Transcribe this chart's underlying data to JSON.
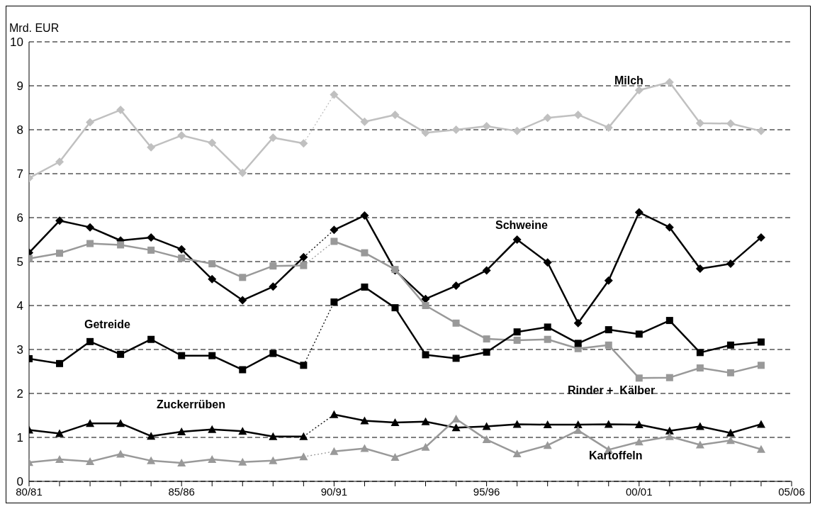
{
  "chart_data": {
    "type": "line",
    "ylabel": "Mrd. EUR",
    "categories": [
      "80/81",
      null,
      null,
      null,
      null,
      "85/86",
      null,
      null,
      null,
      null,
      "90/91",
      null,
      null,
      null,
      null,
      "95/96",
      null,
      null,
      null,
      null,
      "00/01",
      null,
      null,
      null,
      null,
      "05/06"
    ],
    "ylim": [
      0,
      10
    ],
    "yticks": [
      0,
      1,
      2,
      3,
      4,
      5,
      6,
      7,
      8,
      9,
      10
    ],
    "grid": "y",
    "line_style": "solid",
    "series": [
      {
        "color": "#c0c0c0",
        "marker": "diamond",
        "values": [
          6.9,
          7.27,
          8.17,
          8.45,
          7.6,
          7.87,
          7.7,
          7.02,
          7.82,
          7.69,
          null,
          null,
          null,
          null,
          null,
          null,
          null,
          null,
          null,
          null,
          null,
          null,
          null,
          null,
          null,
          null
        ]
      },
      {
        "name": "Milch",
        "color": "#c0c0c0",
        "marker": "diamond",
        "values": [
          null,
          null,
          null,
          null,
          null,
          null,
          null,
          null,
          null,
          null,
          8.8,
          8.18,
          8.34,
          7.93,
          8.0,
          8.08,
          7.97,
          8.27,
          8.34,
          8.05,
          8.9,
          9.08,
          8.15,
          8.14,
          7.97,
          null
        ]
      },
      {
        "color": "#c0c0c0",
        "line_style": "dotted",
        "values": [
          null,
          null,
          null,
          null,
          null,
          null,
          null,
          null,
          null,
          7.69,
          8.8,
          null,
          null,
          null,
          null,
          null,
          null,
          null,
          null,
          null,
          null,
          null,
          null,
          null,
          null,
          null
        ]
      },
      {
        "color": "#000000",
        "marker": "diamond",
        "values": [
          5.2,
          5.93,
          5.78,
          5.48,
          5.55,
          5.28,
          4.6,
          4.12,
          4.43,
          5.1,
          null,
          null,
          null,
          null,
          null,
          null,
          null,
          null,
          null,
          null,
          null,
          null,
          null,
          null,
          null,
          null
        ]
      },
      {
        "name": "Schweine",
        "color": "#000000",
        "marker": "diamond",
        "values": [
          null,
          null,
          null,
          null,
          null,
          null,
          null,
          null,
          null,
          null,
          5.72,
          6.05,
          4.8,
          4.15,
          4.45,
          4.8,
          5.5,
          4.98,
          3.6,
          4.57,
          6.12,
          5.78,
          4.84,
          4.95,
          5.55,
          null
        ]
      },
      {
        "color": "#000000",
        "line_style": "dotted",
        "values": [
          null,
          null,
          null,
          null,
          null,
          null,
          null,
          null,
          null,
          5.1,
          5.72,
          null,
          null,
          null,
          null,
          null,
          null,
          null,
          null,
          null,
          null,
          null,
          null,
          null,
          null,
          null
        ]
      },
      {
        "color": "#999999",
        "marker": "square",
        "values": [
          5.07,
          5.19,
          5.41,
          5.38,
          5.26,
          5.08,
          4.95,
          4.64,
          4.9,
          4.91,
          null,
          null,
          null,
          null,
          null,
          null,
          null,
          null,
          null,
          null,
          null,
          null,
          null,
          null,
          null,
          null
        ]
      },
      {
        "name": "Rinder +  Kälber",
        "color": "#999999",
        "marker": "square",
        "values": [
          null,
          null,
          null,
          null,
          null,
          null,
          null,
          null,
          null,
          null,
          5.46,
          5.2,
          4.82,
          4.0,
          3.6,
          3.24,
          3.21,
          3.23,
          3.02,
          3.1,
          2.35,
          2.36,
          2.58,
          2.47,
          2.64,
          null
        ]
      },
      {
        "color": "#999999",
        "line_style": "dotted",
        "values": [
          null,
          null,
          null,
          null,
          null,
          null,
          null,
          null,
          null,
          4.91,
          5.46,
          null,
          null,
          null,
          null,
          null,
          null,
          null,
          null,
          null,
          null,
          null,
          null,
          null,
          null,
          null
        ]
      },
      {
        "name": "Getreide",
        "color": "#000000",
        "marker": "square",
        "values": [
          2.79,
          2.68,
          3.18,
          2.89,
          3.23,
          2.86,
          2.86,
          2.54,
          2.91,
          2.64,
          null,
          null,
          null,
          null,
          null,
          null,
          null,
          null,
          null,
          null,
          null,
          null,
          null,
          null,
          null,
          null
        ]
      },
      {
        "color": "#000000",
        "marker": "square",
        "values": [
          null,
          null,
          null,
          null,
          null,
          null,
          null,
          null,
          null,
          null,
          4.08,
          4.42,
          3.95,
          2.88,
          2.8,
          2.94,
          3.4,
          3.51,
          3.14,
          3.45,
          3.35,
          3.66,
          2.93,
          3.1,
          3.17,
          null
        ]
      },
      {
        "color": "#000000",
        "line_style": "dotted",
        "values": [
          null,
          null,
          null,
          null,
          null,
          null,
          null,
          null,
          null,
          2.64,
          4.08,
          null,
          null,
          null,
          null,
          null,
          null,
          null,
          null,
          null,
          null,
          null,
          null,
          null,
          null,
          null
        ]
      },
      {
        "name": "Zuckerrüben",
        "color": "#000000",
        "marker": "triangle",
        "values": [
          1.17,
          1.09,
          1.32,
          1.32,
          1.03,
          1.13,
          1.18,
          1.14,
          1.02,
          1.02,
          null,
          null,
          null,
          null,
          null,
          null,
          null,
          null,
          null,
          null,
          null,
          null,
          null,
          null,
          null,
          null
        ]
      },
      {
        "color": "#000000",
        "marker": "triangle",
        "values": [
          null,
          null,
          null,
          null,
          null,
          null,
          null,
          null,
          null,
          null,
          1.52,
          1.38,
          1.34,
          1.36,
          1.22,
          1.25,
          1.3,
          1.29,
          1.29,
          1.3,
          1.29,
          1.15,
          1.25,
          1.1,
          1.3,
          null
        ]
      },
      {
        "color": "#000000",
        "line_style": "dotted",
        "values": [
          null,
          null,
          null,
          null,
          null,
          null,
          null,
          null,
          null,
          1.02,
          1.52,
          null,
          null,
          null,
          null,
          null,
          null,
          null,
          null,
          null,
          null,
          null,
          null,
          null,
          null,
          null
        ]
      },
      {
        "color": "#999999",
        "marker": "triangle",
        "values": [
          0.43,
          0.5,
          0.45,
          0.62,
          0.47,
          0.42,
          0.5,
          0.44,
          0.47,
          0.56,
          null,
          null,
          null,
          null,
          null,
          null,
          null,
          null,
          null,
          null,
          null,
          null,
          null,
          null,
          null,
          null
        ]
      },
      {
        "name": "Kartoffeln",
        "color": "#999999",
        "marker": "triangle",
        "values": [
          null,
          null,
          null,
          null,
          null,
          null,
          null,
          null,
          null,
          null,
          0.68,
          0.75,
          0.55,
          0.78,
          1.42,
          0.95,
          0.63,
          0.82,
          1.16,
          0.72,
          0.9,
          1.02,
          0.83,
          0.93,
          0.73,
          null
        ]
      },
      {
        "color": "#999999",
        "line_style": "dotted",
        "values": [
          null,
          null,
          null,
          null,
          null,
          null,
          null,
          null,
          null,
          0.56,
          0.68,
          null,
          null,
          null,
          null,
          null,
          null,
          null,
          null,
          null,
          null,
          null,
          null,
          null,
          null,
          null
        ]
      }
    ]
  }
}
